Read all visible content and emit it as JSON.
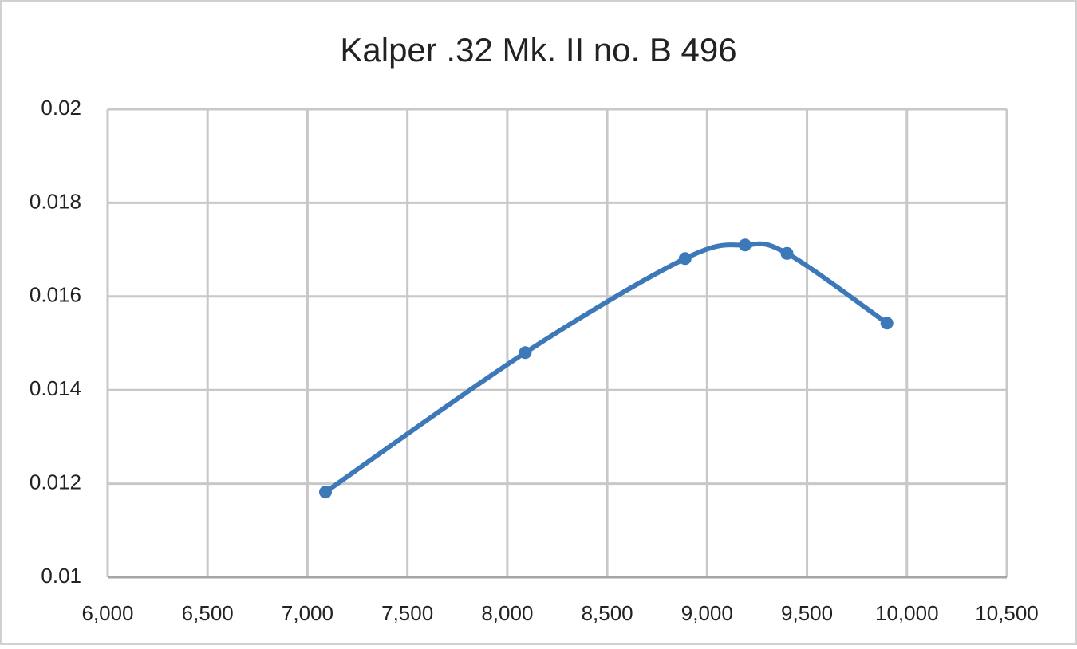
{
  "chart_data": {
    "type": "line",
    "title": "Kalper .32 Mk. II no. B 496",
    "x": [
      7090,
      8090,
      8890,
      9190,
      9400,
      9900
    ],
    "series": [
      {
        "color": "#3d78b8",
        "values": [
          0.01182,
          0.0148,
          0.01681,
          0.0171,
          0.01692,
          0.01543
        ]
      }
    ],
    "xlim": [
      6000,
      10500
    ],
    "xticks": [
      {
        "value": 6000,
        "label": "6,000"
      },
      {
        "value": 6500,
        "label": "6,500"
      },
      {
        "value": 7000,
        "label": "7,000"
      },
      {
        "value": 7500,
        "label": "7,500"
      },
      {
        "value": 8000,
        "label": "8,000"
      },
      {
        "value": 8500,
        "label": "8,500"
      },
      {
        "value": 9000,
        "label": "9,000"
      },
      {
        "value": 9500,
        "label": "9,500"
      },
      {
        "value": 10000,
        "label": "10,000"
      },
      {
        "value": 10500,
        "label": "10,500"
      }
    ],
    "ylim": [
      0.01,
      0.02
    ],
    "yticks": [
      0.01,
      0.012,
      0.014,
      0.016,
      0.018,
      0.02
    ],
    "grid": true
  }
}
